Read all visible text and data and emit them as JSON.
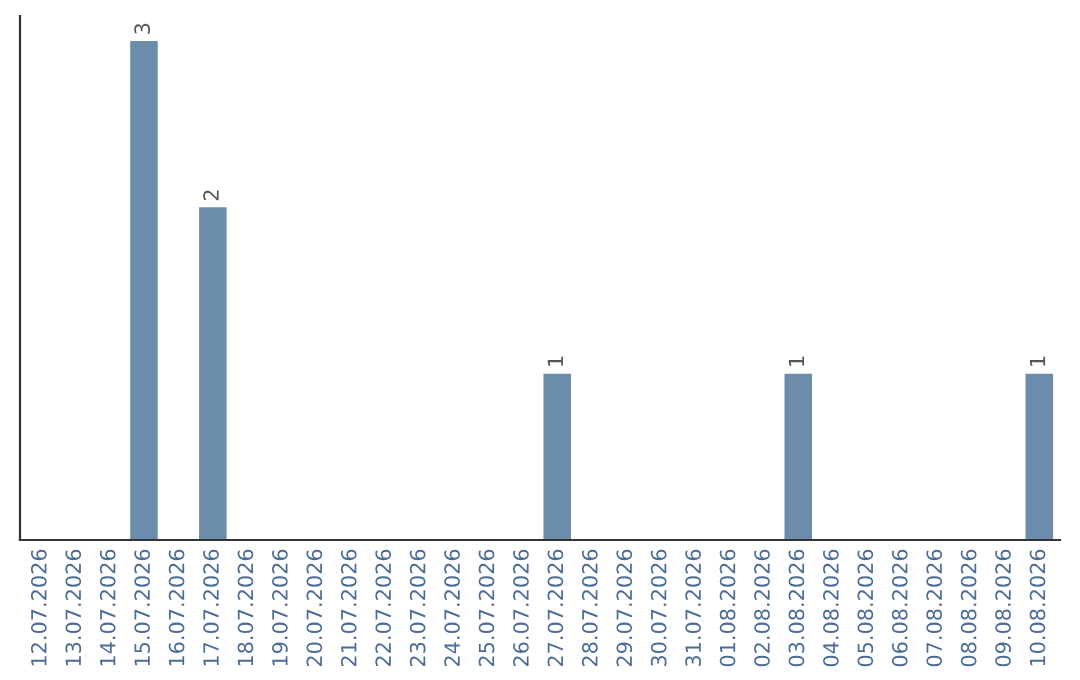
{
  "chart_data": {
    "type": "bar",
    "categories": [
      "12.07.2026",
      "13.07.2026",
      "14.07.2026",
      "15.07.2026",
      "16.07.2026",
      "17.07.2026",
      "18.07.2026",
      "19.07.2026",
      "20.07.2026",
      "21.07.2026",
      "22.07.2026",
      "23.07.2026",
      "24.07.2026",
      "25.07.2026",
      "26.07.2026",
      "27.07.2026",
      "28.07.2026",
      "29.07.2026",
      "30.07.2026",
      "31.07.2026",
      "01.08.2026",
      "02.08.2026",
      "03.08.2026",
      "04.08.2026",
      "05.08.2026",
      "06.08.2026",
      "07.08.2026",
      "08.08.2026",
      "09.08.2026",
      "10.08.2026"
    ],
    "values": [
      0,
      0,
      0,
      3,
      0,
      2,
      0,
      0,
      0,
      0,
      0,
      0,
      0,
      0,
      0,
      1,
      0,
      0,
      0,
      0,
      0,
      0,
      1,
      0,
      0,
      0,
      0,
      0,
      0,
      1
    ],
    "value_labels": [
      null,
      null,
      null,
      "3",
      null,
      "2",
      null,
      null,
      null,
      null,
      null,
      null,
      null,
      null,
      null,
      "1",
      null,
      null,
      null,
      null,
      null,
      null,
      "1",
      null,
      null,
      null,
      null,
      null,
      null,
      "1"
    ],
    "color": "#6b8cab",
    "tick_labels": "x",
    "grid": false,
    "legend": false
  }
}
